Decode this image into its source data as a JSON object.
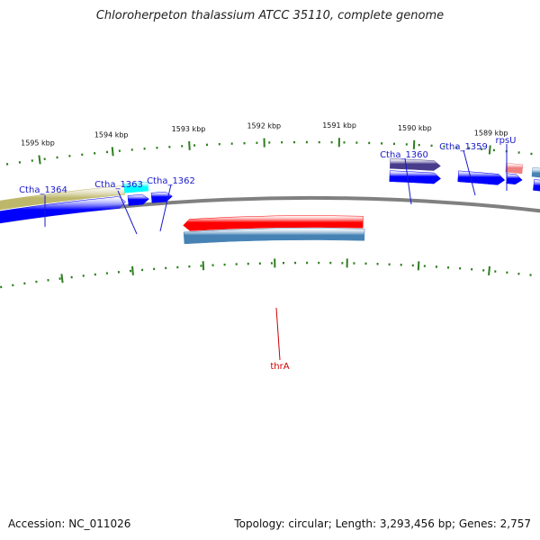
{
  "title": "Chloroherpeton thalassium ATCC 35110, complete genome",
  "accession": "Accession: NC_011026",
  "topology": "Topology: circular",
  "length": "Length: 3,293,456 bp",
  "genes": "Genes: 2,757",
  "colors": {
    "backbone": "#808080",
    "tick": "#2e7d1f",
    "label_blue": "#1a1acc",
    "label_red": "#cc0000",
    "cds_blue": "#0000ff",
    "steelblue": "#4682b4",
    "khaki": "#bdb76b",
    "cyan": "#00ffff",
    "slateblue": "#483d8b",
    "red": "#ff0000",
    "salmon": "#f08080"
  },
  "ticks": [
    "1595 kbp",
    "1594 kbp",
    "1593 kbp",
    "1592 kbp",
    "1591 kbp",
    "1590 kbp",
    "1589 kbp"
  ],
  "gene_labels": [
    {
      "text": "Ctha_1364",
      "color": "label_blue"
    },
    {
      "text": "Ctha_1363",
      "color": "label_blue"
    },
    {
      "text": "Ctha_1362",
      "color": "label_blue"
    },
    {
      "text": "Ctha_1360",
      "color": "label_blue"
    },
    {
      "text": "Ctha_1359",
      "color": "label_blue"
    },
    {
      "text": "rpsU",
      "color": "label_blue"
    },
    {
      "text": "thrA",
      "color": "label_red"
    }
  ]
}
